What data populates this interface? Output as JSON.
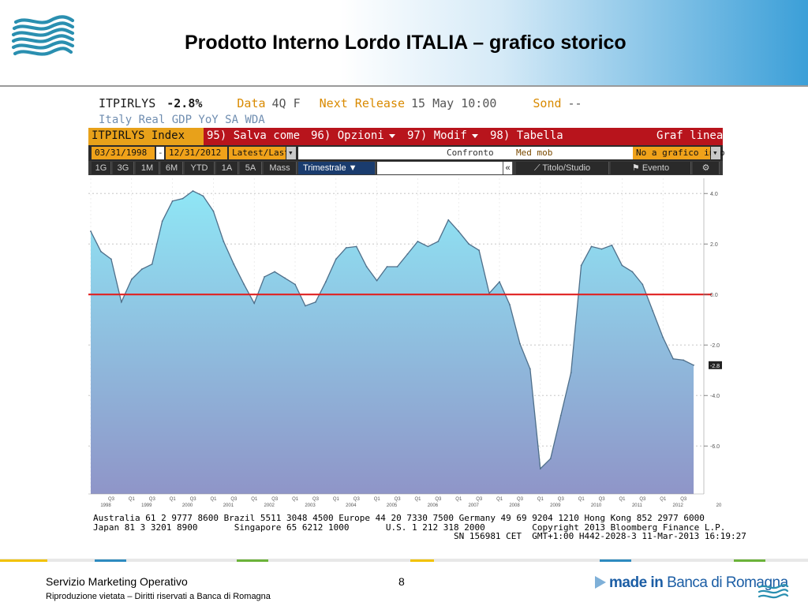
{
  "slide": {
    "title": "Prodotto Interno Lordo ITALIA – grafico storico",
    "footer_dept": "Servizio Marketing Operativo",
    "footer_rights": "Riproduzione vietata – Diritti riservati a Banca di Romagna",
    "page_number": "8",
    "brand_made_in": "made in",
    "brand_name": "Banca di Romagna"
  },
  "terminal": {
    "ticker": "ITPIRLYS",
    "change": "-2.8%",
    "data_label": "Data",
    "data_value": "4Q F",
    "next_release_label": "Next Release",
    "next_release_value": "15 May 10:00",
    "sond_label": "Sond",
    "sond_value": "--",
    "description": "Italy Real GDP YoY SA WDA",
    "index_label": "ITPIRLYS Index",
    "menu_salva": "95) Salva come",
    "menu_opzioni": "96) Opzioni",
    "menu_modif": "97) Modif",
    "menu_tabella": "98) Tabella",
    "menu_graf": "Graf linea",
    "date_start": "03/31/1998",
    "date_sep": "-",
    "date_end": "12/31/2012",
    "latest": "Latest/Last",
    "confronto": "Confronto",
    "med_mob": "Med mob",
    "no_grafico": "No a grafico info",
    "periods": [
      "1G",
      "3G",
      "1M",
      "6M",
      "YTD",
      "1A",
      "5A",
      "Mass"
    ],
    "trimestrale": "Trimestrale ▼",
    "chevron": "«",
    "titolo_studio": "Titolo/Studio",
    "evento": "Evento",
    "footer_line1": "Australia 61 2 9777 8600 Brazil 5511 3048 4500 Europe 44 20 7330 7500 Germany 49 69 9204 1210 Hong Kong 852 2977 6000",
    "footer_line2": "Japan 81 3 3201 8900       Singapore 65 6212 1000       U.S. 1 212 318 2000         Copyright 2013 Bloomberg Finance L.P.",
    "footer_line3": "                                                                     SN 156981 CET  GMT+1:00 H442-2028-3 11-Mar-2013 16:19:27"
  },
  "chart_data": {
    "type": "area",
    "title": "",
    "xlabel": "",
    "ylabel": "",
    "ylim": [
      -7.9,
      4.6
    ],
    "yticks": [
      "4.0",
      "2.0",
      "0.0",
      "-2.0",
      "-4.0",
      "-6.0"
    ],
    "ytick_values": [
      4,
      2,
      0,
      -2,
      -4,
      -6
    ],
    "last_value_label": "-2.8",
    "reference_line": 0,
    "x": [
      "1998 Q1",
      "1998 Q2",
      "1998 Q3",
      "1998 Q4",
      "1999 Q1",
      "1999 Q2",
      "1999 Q3",
      "1999 Q4",
      "2000 Q1",
      "2000 Q2",
      "2000 Q3",
      "2000 Q4",
      "2001 Q1",
      "2001 Q2",
      "2001 Q3",
      "2001 Q4",
      "2002 Q1",
      "2002 Q2",
      "2002 Q3",
      "2002 Q4",
      "2003 Q1",
      "2003 Q2",
      "2003 Q3",
      "2003 Q4",
      "2004 Q1",
      "2004 Q2",
      "2004 Q3",
      "2004 Q4",
      "2005 Q1",
      "2005 Q2",
      "2005 Q3",
      "2005 Q4",
      "2006 Q1",
      "2006 Q2",
      "2006 Q3",
      "2006 Q4",
      "2007 Q1",
      "2007 Q2",
      "2007 Q3",
      "2007 Q4",
      "2008 Q1",
      "2008 Q2",
      "2008 Q3",
      "2008 Q4",
      "2009 Q1",
      "2009 Q2",
      "2009 Q3",
      "2009 Q4",
      "2010 Q1",
      "2010 Q2",
      "2010 Q3",
      "2010 Q4",
      "2011 Q1",
      "2011 Q2",
      "2011 Q3",
      "2011 Q4",
      "2012 Q1",
      "2012 Q2",
      "2012 Q3",
      "2012 Q4"
    ],
    "values": [
      2.5,
      1.7,
      1.4,
      -0.3,
      0.6,
      1.0,
      1.2,
      2.9,
      3.7,
      3.8,
      4.1,
      3.9,
      3.3,
      2.1,
      1.2,
      0.4,
      -0.35,
      0.7,
      0.9,
      0.65,
      0.4,
      -0.45,
      -0.3,
      0.5,
      1.4,
      1.85,
      1.9,
      1.1,
      0.55,
      1.1,
      1.1,
      1.6,
      2.1,
      1.9,
      2.1,
      2.95,
      2.5,
      2.0,
      1.75,
      0.05,
      0.5,
      -0.4,
      -1.95,
      -2.95,
      -6.9,
      -6.5,
      -4.8,
      -3.1,
      1.15,
      1.9,
      1.8,
      1.95,
      1.15,
      0.9,
      0.4,
      -0.65,
      -1.7,
      -2.55,
      -2.6,
      -2.8
    ],
    "xtick_years": [
      "1998",
      "1999",
      "2000",
      "2001",
      "2002",
      "2003",
      "2004",
      "2005",
      "2006",
      "2007",
      "2008",
      "2009",
      "2010",
      "2011",
      "2012",
      "20"
    ],
    "colors": {
      "area_top": "#8fe6f5",
      "area_bottom": "#8f95c8",
      "line": "#4f6f8a",
      "zero_line": "#e02020",
      "grid": "#bdbdbd",
      "axis_text": "#555555"
    }
  }
}
